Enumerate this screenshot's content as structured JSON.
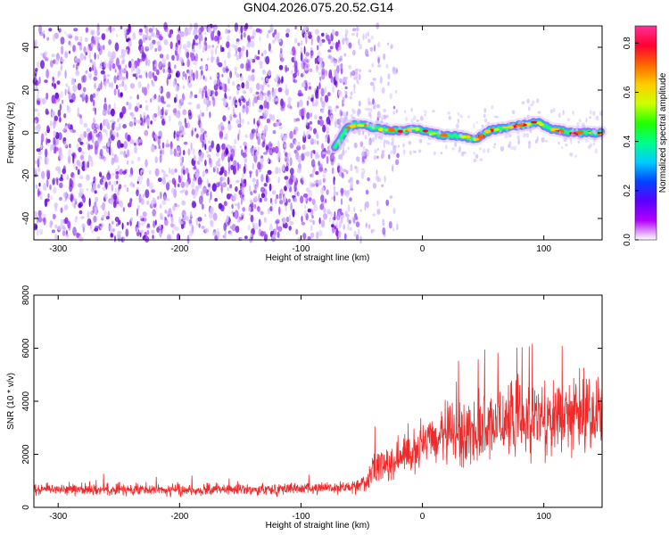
{
  "figure_title": "GN04.2026.075.20.52.G14",
  "chart_data": [
    {
      "type": "heatmap",
      "title": "GN04.2026.075.20.52.G14",
      "xlabel": "Height of straight line (km)",
      "ylabel": "Frequency (Hz)",
      "xlim": [
        -320,
        148
      ],
      "ylim": [
        -50,
        50
      ],
      "xticks": [
        -300,
        -200,
        -100,
        0,
        100
      ],
      "yticks": [
        -40,
        -20,
        0,
        20,
        40
      ],
      "xtick_labels": [
        "-300",
        "-200",
        "-100",
        "0",
        "100"
      ],
      "ytick_labels": [
        "-40",
        "-20",
        "0",
        "20",
        "40"
      ],
      "noise_region_km": [
        -320,
        -68
      ],
      "sparse_noise_region_km": [
        -68,
        -20
      ],
      "signal_start_km": -72,
      "signal_track": {
        "x": [
          -72,
          -68,
          -62,
          -55,
          -45,
          -35,
          -25,
          -15,
          -5,
          5,
          15,
          25,
          35,
          45,
          55,
          65,
          75,
          85,
          95,
          105,
          115,
          125,
          135,
          148
        ],
        "y": [
          -7,
          -3,
          2,
          4,
          3,
          2,
          1,
          1,
          2,
          0,
          -1,
          -1,
          -2,
          -3,
          1,
          2,
          3,
          4,
          5,
          2,
          1,
          0,
          0,
          0
        ]
      },
      "colorbar": {
        "label": "Normalized spectral amplitude",
        "range": [
          0.0,
          0.87
        ],
        "ticks": [
          0.0,
          0.2,
          0.4,
          0.6,
          0.8
        ],
        "tick_labels": [
          "0.0",
          "0.2",
          "0.4",
          "0.6",
          "0.8"
        ],
        "colors": [
          "#ffffff",
          "#b200ff",
          "#5a00ff",
          "#0044ff",
          "#00ccff",
          "#00ff88",
          "#22ff00",
          "#ccff00",
          "#ffcc00",
          "#ff6600",
          "#ff0033",
          "#ff2f99"
        ]
      }
    },
    {
      "type": "line",
      "xlabel": "Height of straight line (km)",
      "ylabel": "SNR (10 * v/v)",
      "xlim": [
        -320,
        148
      ],
      "ylim": [
        0,
        8000
      ],
      "xticks": [
        -300,
        -200,
        -100,
        0,
        100
      ],
      "yticks": [
        0,
        2000,
        4000,
        6000,
        8000
      ],
      "xtick_labels": [
        "-300",
        "-200",
        "-100",
        "0",
        "100"
      ],
      "ytick_labels": [
        "0",
        "2000",
        "4000",
        "6000",
        "8000"
      ],
      "series": [
        {
          "name": "SNR",
          "color": "#ee2a2a",
          "envelope": {
            "x": [
              -320,
              -200,
              -100,
              -60,
              -45,
              -40,
              -20,
              0,
              20,
              40,
              60,
              80,
              100,
              120,
              148
            ],
            "mean": [
              700,
              650,
              700,
              750,
              900,
              1500,
              1800,
              2300,
              2700,
              2900,
              3100,
              3300,
              3400,
              3500,
              3600
            ],
            "spread": [
              350,
              320,
              330,
              330,
              500,
              900,
              1100,
              1400,
              1600,
              1900,
              2000,
              2100,
              2100,
              2200,
              2200
            ]
          }
        }
      ]
    }
  ]
}
